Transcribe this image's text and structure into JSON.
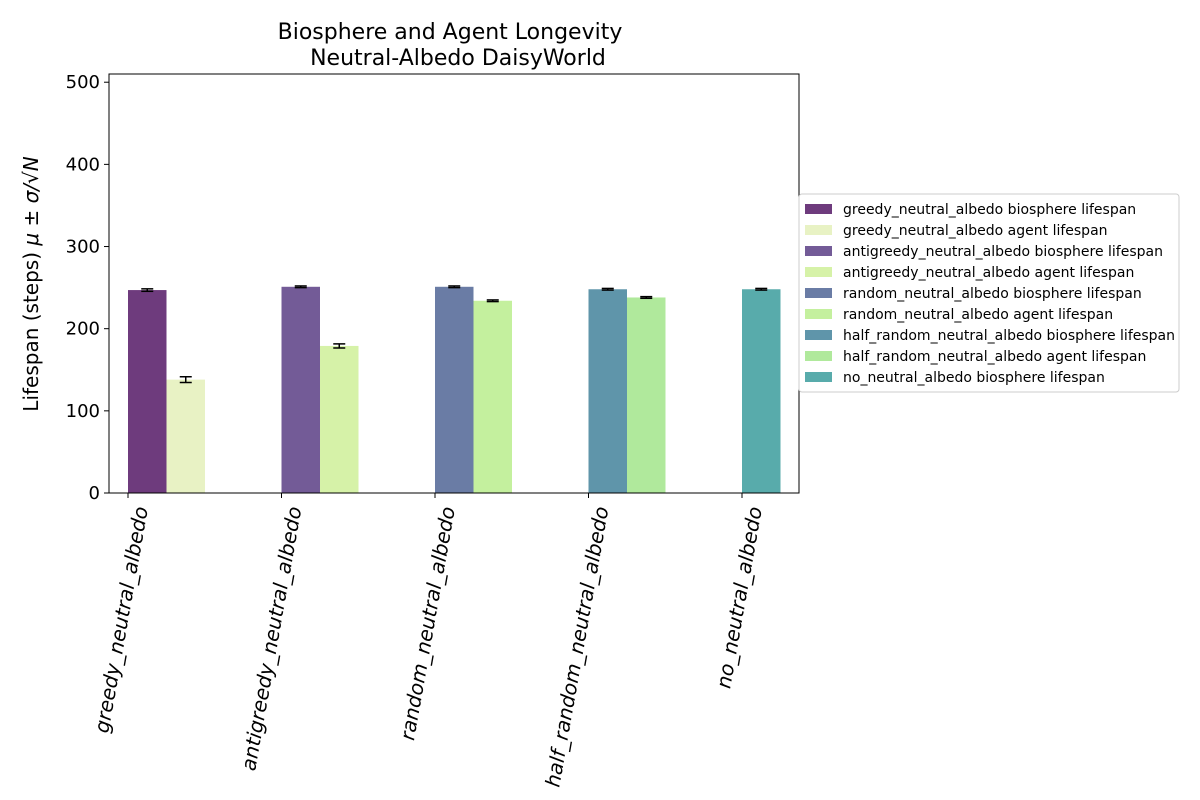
{
  "chart_data": {
    "type": "bar",
    "title": "Biosphere and Agent Longevity",
    "subtitle": "Neutral-Albedo DaisyWorld",
    "ylabel": {
      "text": "Lifespan (steps) ",
      "formula": "μ ± σ/√N"
    },
    "ylim": [
      0,
      510
    ],
    "yticks": [
      0,
      100,
      200,
      300,
      400,
      500
    ],
    "categories": [
      "greedy_neutral_albedo",
      "antigreedy_neutral_albedo",
      "random_neutral_albedo",
      "half_random_neutral_albedo",
      "no_neutral_albedo"
    ],
    "series": [
      {
        "name": "greedy_neutral_albedo biosphere lifespan",
        "category": "greedy_neutral_albedo",
        "kind": "biosphere",
        "value": 247,
        "error": 1.5,
        "color": "#6e3b7d"
      },
      {
        "name": "greedy_neutral_albedo agent lifespan",
        "category": "greedy_neutral_albedo",
        "kind": "agent",
        "value": 138,
        "error": 3.5,
        "color": "#e8f2c4"
      },
      {
        "name": "antigreedy_neutral_albedo biosphere lifespan",
        "category": "antigreedy_neutral_albedo",
        "kind": "biosphere",
        "value": 251,
        "error": 1,
        "color": "#735b97"
      },
      {
        "name": "antigreedy_neutral_albedo agent lifespan",
        "category": "antigreedy_neutral_albedo",
        "kind": "agent",
        "value": 179,
        "error": 2.5,
        "color": "#d6f2a8"
      },
      {
        "name": "random_neutral_albedo biosphere lifespan",
        "category": "random_neutral_albedo",
        "kind": "biosphere",
        "value": 251,
        "error": 1,
        "color": "#6a7ca5"
      },
      {
        "name": "random_neutral_albedo agent lifespan",
        "category": "random_neutral_albedo",
        "kind": "agent",
        "value": 234,
        "error": 1,
        "color": "#c4f09e"
      },
      {
        "name": "half_random_neutral_albedo biosphere lifespan",
        "category": "half_random_neutral_albedo",
        "kind": "biosphere",
        "value": 248,
        "error": 1,
        "color": "#5f95aa"
      },
      {
        "name": "half_random_neutral_albedo agent lifespan",
        "category": "half_random_neutral_albedo",
        "kind": "agent",
        "value": 238,
        "error": 1,
        "color": "#b0e99c"
      },
      {
        "name": "no_neutral_albedo biosphere lifespan",
        "category": "no_neutral_albedo",
        "kind": "biosphere",
        "value": 248,
        "error": 1,
        "color": "#58abab"
      }
    ],
    "legend_placement": "right",
    "grid": false
  }
}
